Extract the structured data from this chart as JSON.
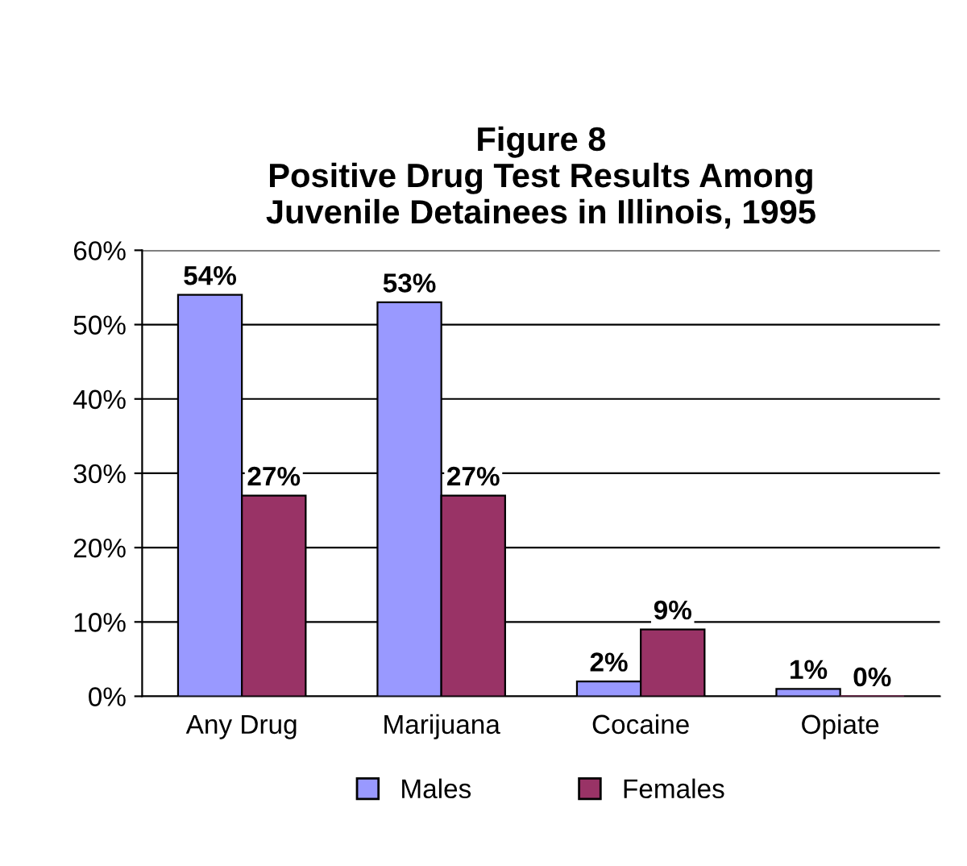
{
  "chart_data": {
    "type": "bar",
    "title": "Figure 8\nPositive Drug Test Results Among\nJuvenile Detainees in Illinois, 1995",
    "categories": [
      "Any Drug",
      "Marijuana",
      "Cocaine",
      "Opiate"
    ],
    "series": [
      {
        "name": "Males",
        "color": "#9999ff",
        "values": [
          54,
          53,
          2,
          1
        ],
        "value_labels": [
          "54%",
          "53%",
          "2%",
          "1%"
        ]
      },
      {
        "name": "Females",
        "color": "#993366",
        "values": [
          27,
          27,
          9,
          0
        ],
        "value_labels": [
          "27%",
          "27%",
          "9%",
          "0%"
        ]
      }
    ],
    "ylim": [
      0,
      60
    ],
    "yticks": [
      {
        "value": 0,
        "label": "0%"
      },
      {
        "value": 10,
        "label": "10%"
      },
      {
        "value": 20,
        "label": "20%"
      },
      {
        "value": 30,
        "label": "30%"
      },
      {
        "value": 40,
        "label": "40%"
      },
      {
        "value": 50,
        "label": "50%"
      },
      {
        "value": 60,
        "label": "60%"
      }
    ],
    "grid": "y",
    "legend": "bottom"
  }
}
